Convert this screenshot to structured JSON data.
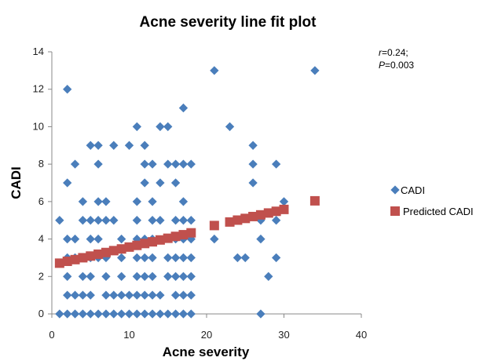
{
  "chart_data": {
    "type": "scatter",
    "title": "Acne severity line fit plot",
    "xlabel": "Acne severity",
    "ylabel": "CADI",
    "xlim": [
      0,
      40
    ],
    "ylim": [
      0,
      14
    ],
    "xticks": [
      "0",
      "10",
      "20",
      "30",
      "40"
    ],
    "yticks": [
      "0",
      "2",
      "4",
      "6",
      "8",
      "10",
      "12",
      "14"
    ],
    "grid": false,
    "legend_position": "right",
    "annotation": {
      "r_symbol": "r",
      "r_value": "=0.24;",
      "p_symbol": "P",
      "p_value": "=0.003"
    },
    "series": [
      {
        "name": "CADI",
        "marker": "diamond",
        "color": "#4a7ebb",
        "points": [
          [
            1,
            0
          ],
          [
            2,
            0
          ],
          [
            3,
            0
          ],
          [
            4,
            0
          ],
          [
            5,
            0
          ],
          [
            6,
            0
          ],
          [
            7,
            0
          ],
          [
            8,
            0
          ],
          [
            9,
            0
          ],
          [
            10,
            0
          ],
          [
            11,
            0
          ],
          [
            12,
            0
          ],
          [
            13,
            0
          ],
          [
            14,
            0
          ],
          [
            15,
            0
          ],
          [
            16,
            0
          ],
          [
            17,
            0
          ],
          [
            18,
            0
          ],
          [
            27,
            0
          ],
          [
            2,
            1
          ],
          [
            3,
            1
          ],
          [
            4,
            1
          ],
          [
            5,
            1
          ],
          [
            7,
            1
          ],
          [
            8,
            1
          ],
          [
            9,
            1
          ],
          [
            10,
            1
          ],
          [
            11,
            1
          ],
          [
            12,
            1
          ],
          [
            13,
            1
          ],
          [
            14,
            1
          ],
          [
            16,
            1
          ],
          [
            17,
            1
          ],
          [
            18,
            1
          ],
          [
            2,
            2
          ],
          [
            4,
            2
          ],
          [
            5,
            2
          ],
          [
            7,
            2
          ],
          [
            9,
            2
          ],
          [
            11,
            2
          ],
          [
            12,
            2
          ],
          [
            13,
            2
          ],
          [
            15,
            2
          ],
          [
            16,
            2
          ],
          [
            17,
            2
          ],
          [
            18,
            2
          ],
          [
            28,
            2
          ],
          [
            2,
            3
          ],
          [
            3,
            3
          ],
          [
            5,
            3
          ],
          [
            6,
            3
          ],
          [
            7,
            3
          ],
          [
            9,
            3
          ],
          [
            11,
            3
          ],
          [
            12,
            3
          ],
          [
            13,
            3
          ],
          [
            15,
            3
          ],
          [
            16,
            3
          ],
          [
            17,
            3
          ],
          [
            18,
            3
          ],
          [
            24,
            3
          ],
          [
            25,
            3
          ],
          [
            29,
            3
          ],
          [
            2,
            4
          ],
          [
            3,
            4
          ],
          [
            5,
            4
          ],
          [
            6,
            4
          ],
          [
            9,
            4
          ],
          [
            11,
            4
          ],
          [
            12,
            4
          ],
          [
            13,
            4
          ],
          [
            16,
            4
          ],
          [
            17,
            4
          ],
          [
            18,
            4
          ],
          [
            21,
            4
          ],
          [
            27,
            4
          ],
          [
            1,
            5
          ],
          [
            4,
            5
          ],
          [
            5,
            5
          ],
          [
            6,
            5
          ],
          [
            7,
            5
          ],
          [
            8,
            5
          ],
          [
            11,
            5
          ],
          [
            13,
            5
          ],
          [
            14,
            5
          ],
          [
            16,
            5
          ],
          [
            17,
            5
          ],
          [
            18,
            5
          ],
          [
            27,
            5
          ],
          [
            29,
            5
          ],
          [
            4,
            6
          ],
          [
            6,
            6
          ],
          [
            7,
            6
          ],
          [
            11,
            6
          ],
          [
            13,
            6
          ],
          [
            17,
            6
          ],
          [
            30,
            6
          ],
          [
            2,
            7
          ],
          [
            12,
            7
          ],
          [
            14,
            7
          ],
          [
            16,
            7
          ],
          [
            26,
            7
          ],
          [
            3,
            8
          ],
          [
            6,
            8
          ],
          [
            12,
            8
          ],
          [
            13,
            8
          ],
          [
            15,
            8
          ],
          [
            16,
            8
          ],
          [
            17,
            8
          ],
          [
            18,
            8
          ],
          [
            26,
            8
          ],
          [
            29,
            8
          ],
          [
            5,
            9
          ],
          [
            6,
            9
          ],
          [
            8,
            9
          ],
          [
            10,
            9
          ],
          [
            12,
            9
          ],
          [
            26,
            9
          ],
          [
            11,
            10
          ],
          [
            14,
            10
          ],
          [
            15,
            10
          ],
          [
            23,
            10
          ],
          [
            17,
            11
          ],
          [
            2,
            12
          ],
          [
            21,
            13
          ],
          [
            34,
            13
          ]
        ]
      },
      {
        "name": "Predicted CADI",
        "marker": "square",
        "color": "#c0504d",
        "points": [
          [
            1,
            2.71
          ],
          [
            2,
            2.81
          ],
          [
            3,
            2.9
          ],
          [
            4,
            3.0
          ],
          [
            5,
            3.09
          ],
          [
            6,
            3.19
          ],
          [
            7,
            3.28
          ],
          [
            8,
            3.38
          ],
          [
            9,
            3.47
          ],
          [
            10,
            3.57
          ],
          [
            11,
            3.66
          ],
          [
            12,
            3.76
          ],
          [
            13,
            3.85
          ],
          [
            14,
            3.95
          ],
          [
            15,
            4.04
          ],
          [
            16,
            4.14
          ],
          [
            17,
            4.23
          ],
          [
            18,
            4.33
          ],
          [
            21,
            4.72
          ],
          [
            23,
            4.91
          ],
          [
            24,
            5.01
          ],
          [
            25,
            5.1
          ],
          [
            26,
            5.2
          ],
          [
            27,
            5.29
          ],
          [
            28,
            5.39
          ],
          [
            29,
            5.48
          ],
          [
            30,
            5.58
          ],
          [
            34,
            6.04
          ]
        ]
      }
    ]
  }
}
